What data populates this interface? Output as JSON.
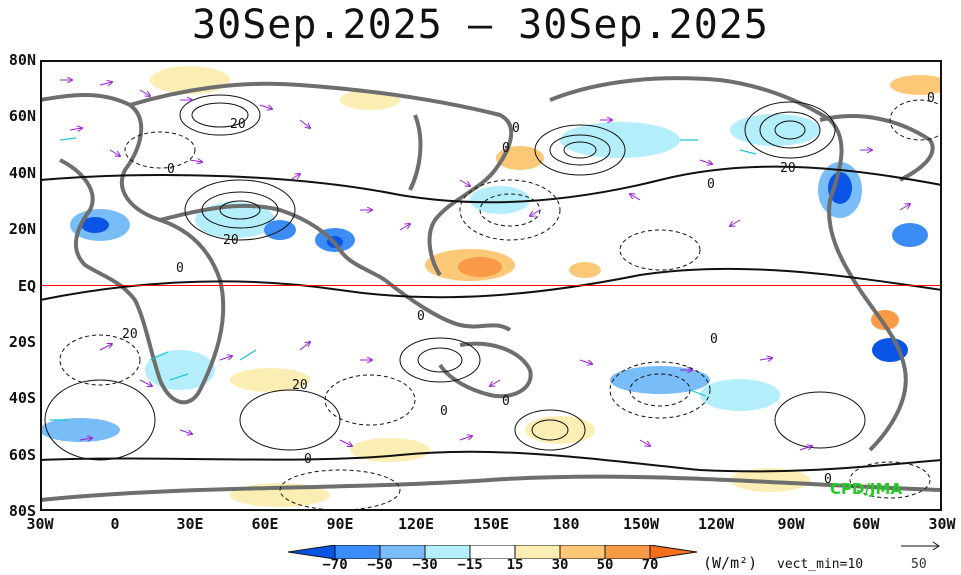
{
  "title": "30Sep.2025 – 30Sep.2025",
  "latitude_labels": [
    "80N",
    "60N",
    "40N",
    "20N",
    "EQ",
    "20S",
    "40S",
    "60S",
    "80S"
  ],
  "longitude_labels": [
    "30W",
    "0",
    "30E",
    "60E",
    "90E",
    "120E",
    "150E",
    "180",
    "150W",
    "120W",
    "90W",
    "60W",
    "30W"
  ],
  "contour_labels": [
    "20",
    "0",
    "20",
    "0",
    "20",
    "0",
    "20",
    "0",
    "0",
    "0",
    "0",
    "0",
    "20",
    "0",
    "0",
    "0",
    "0"
  ],
  "colorbar": {
    "ticks": [
      "−70",
      "−50",
      "−30",
      "−15",
      "15",
      "30",
      "50",
      "70"
    ],
    "colors": [
      "#0a55e6",
      "#3c8cf5",
      "#78bcf8",
      "#b4eefa",
      "#ffffff",
      "#fbeeb4",
      "#fbc878",
      "#f89a46",
      "#f56e1e"
    ],
    "unit": "(W/m²)"
  },
  "vector_note": "vect_min=10",
  "reference_vector": "50",
  "credit": "CPD/JMA",
  "colors": {
    "land_outline": "#6e6e6e",
    "vectors": "#9a1fd6",
    "equator": "#ff0000",
    "strong_vectors": "#1fc4d6"
  }
}
